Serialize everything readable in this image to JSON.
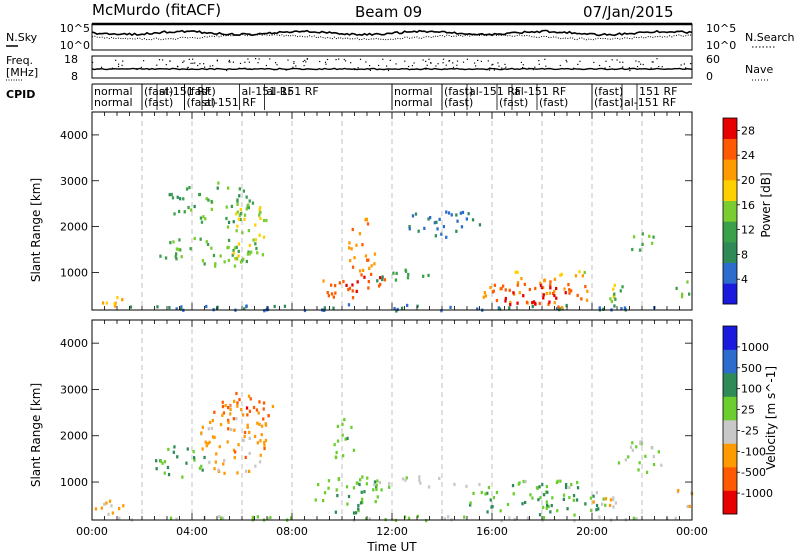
{
  "header": {
    "station": "McMurdo (fitACF)",
    "beam": "Beam 09",
    "date": "07/Jan/2015"
  },
  "side_labels": {
    "nsky": "N.Sky",
    "nsearch": "N.Search",
    "freq_line1": "Freq.",
    "freq_line2": "[MHz]",
    "nave": "Nave",
    "cpid": "CPID"
  },
  "noise_panel": {
    "left_ticks": [
      "10^5",
      "10^0"
    ],
    "right_ticks": [
      "10^5",
      "10^0"
    ]
  },
  "freq_panel": {
    "left_ticks": [
      "18",
      "8"
    ],
    "right_ticks": [
      "60",
      "0"
    ]
  },
  "cpid_labels": [
    {
      "t": 0.0,
      "text": "normal",
      "row": 0
    },
    {
      "t": 0.0,
      "text": "normal",
      "row": 1
    },
    {
      "t": 2.0,
      "text": "(fast)",
      "row": 0
    },
    {
      "t": 2.0,
      "text": "(fast)",
      "row": 1
    },
    {
      "t": 2.6,
      "text": "al-151 RF",
      "row": 0
    },
    {
      "t": 3.7,
      "text": "(fast)",
      "row": 0
    },
    {
      "t": 3.7,
      "text": "(fast)",
      "row": 1
    },
    {
      "t": 4.4,
      "text": "al-151 RF",
      "row": 1
    },
    {
      "t": 5.9,
      "text": "al-151 RF",
      "row": 0
    },
    {
      "t": 6.9,
      "text": "al-151 RF",
      "row": 0
    },
    {
      "t": 12.0,
      "text": "normal",
      "row": 0
    },
    {
      "t": 12.0,
      "text": "normal",
      "row": 1
    },
    {
      "t": 14.0,
      "text": "(fast)",
      "row": 0
    },
    {
      "t": 14.0,
      "text": "(fast)",
      "row": 1
    },
    {
      "t": 15.0,
      "text": "al-151 RF",
      "row": 0
    },
    {
      "t": 16.2,
      "text": "(fast)",
      "row": 1
    },
    {
      "t": 16.8,
      "text": "al-151 RF",
      "row": 0
    },
    {
      "t": 17.8,
      "text": "(fast)",
      "row": 1
    },
    {
      "t": 20.0,
      "text": "(fast)",
      "row": 0
    },
    {
      "t": 20.0,
      "text": "(fast)",
      "row": 1
    },
    {
      "t": 21.2,
      "text": "al-151 RF",
      "row": 1
    },
    {
      "t": 21.8,
      "text": "151 RF",
      "row": 0
    }
  ],
  "chart_data": [
    {
      "type": "heatmap",
      "ylabel": "Slant Range [km]",
      "xlabel": "",
      "x_ticks": [
        "00:00",
        "04:00",
        "08:00",
        "12:00",
        "16:00",
        "20:00",
        "00:00"
      ],
      "y_ticks": [
        "1000",
        "2000",
        "3000",
        "4000"
      ],
      "xlim_hours": [
        0,
        24
      ],
      "ylim_km": [
        180,
        4500
      ],
      "colorbar": {
        "label": "Power [dB]",
        "ticks": [
          "4",
          "8",
          "12",
          "16",
          "20",
          "24",
          "28"
        ],
        "range": [
          0,
          30
        ],
        "colors": [
          "#1a1adf",
          "#2b6ccd",
          "#2e8b57",
          "#3aa04a",
          "#7acd2f",
          "#ffd000",
          "#ff9a00",
          "#ff5a00",
          "#e60000"
        ]
      },
      "blobs": [
        {
          "t": [
            0.0,
            1.2
          ],
          "r": [
            220,
            600
          ],
          "v": 20
        },
        {
          "t": [
            0.0,
            24.0
          ],
          "r": [
            190,
            330
          ],
          "v": 6
        },
        {
          "t": [
            2.5,
            7.0
          ],
          "r": [
            1150,
            1800
          ],
          "v": 13
        },
        {
          "t": [
            3.0,
            6.5
          ],
          "r": [
            2100,
            3000
          ],
          "v": 12
        },
        {
          "t": [
            5.2,
            7.0
          ],
          "r": [
            1300,
            2600
          ],
          "v": 17
        },
        {
          "t": [
            9.0,
            11.8
          ],
          "r": [
            450,
            1100
          ],
          "v": 25
        },
        {
          "t": [
            10.2,
            11.4
          ],
          "r": [
            1000,
            2200
          ],
          "v": 22
        },
        {
          "t": [
            11.0,
            13.5
          ],
          "r": [
            800,
            1150
          ],
          "v": 10
        },
        {
          "t": [
            12.5,
            15.5
          ],
          "r": [
            1800,
            2400
          ],
          "v": 6
        },
        {
          "t": [
            15.5,
            20.0
          ],
          "r": [
            250,
            900
          ],
          "v": 24
        },
        {
          "t": [
            16.2,
            19.0
          ],
          "r": [
            250,
            750
          ],
          "v": 29
        },
        {
          "t": [
            16.0,
            20.5
          ],
          "r": [
            950,
            1100
          ],
          "v": 19
        },
        {
          "t": [
            20.0,
            21.5
          ],
          "r": [
            400,
            800
          ],
          "v": 15
        },
        {
          "t": [
            21.5,
            22.5
          ],
          "r": [
            1400,
            1900
          ],
          "v": 13
        },
        {
          "t": [
            23.3,
            24.0
          ],
          "r": [
            400,
            900
          ],
          "v": 14
        }
      ]
    },
    {
      "type": "heatmap",
      "ylabel": "Slant Range [km]",
      "xlabel": "Time UT",
      "x_ticks": [
        "00:00",
        "04:00",
        "08:00",
        "12:00",
        "16:00",
        "20:00",
        "00:00"
      ],
      "y_ticks": [
        "1000",
        "2000",
        "3000",
        "4000"
      ],
      "xlim_hours": [
        0,
        24
      ],
      "ylim_km": [
        180,
        4500
      ],
      "colorbar": {
        "label": "Velocity [m s^-1]",
        "ticks": [
          "1000",
          "500",
          "100",
          "25",
          "-25",
          "-100",
          "-500",
          "-1000"
        ],
        "range": [
          -1200,
          1200
        ],
        "colors": [
          "#e60000",
          "#ff5a00",
          "#ff9a00",
          "#c8c8c8",
          "#6ccd2f",
          "#2e8b57",
          "#2b6ccd",
          "#1a1adf"
        ]
      },
      "blobs": [
        {
          "t": [
            0.0,
            1.3
          ],
          "r": [
            220,
            650
          ],
          "v": -300
        },
        {
          "t": [
            0.0,
            24.0
          ],
          "r": [
            190,
            300
          ],
          "v": 0
        },
        {
          "t": [
            2.5,
            4.5
          ],
          "r": [
            1100,
            1800
          ],
          "v": 300
        },
        {
          "t": [
            4.3,
            7.0
          ],
          "r": [
            1200,
            2700
          ],
          "v": -400
        },
        {
          "t": [
            5.0,
            7.2
          ],
          "r": [
            2100,
            3000
          ],
          "v": -700
        },
        {
          "t": [
            8.8,
            11.6
          ],
          "r": [
            350,
            1200
          ],
          "v": 250
        },
        {
          "t": [
            9.5,
            10.5
          ],
          "r": [
            1500,
            2400
          ],
          "v": 200
        },
        {
          "t": [
            11.0,
            15.5
          ],
          "r": [
            900,
            1150
          ],
          "v": 0
        },
        {
          "t": [
            15.0,
            20.5
          ],
          "r": [
            250,
            1000
          ],
          "v": 300
        },
        {
          "t": [
            17.0,
            20.0
          ],
          "r": [
            900,
            1150
          ],
          "v": 150
        },
        {
          "t": [
            20.0,
            21.2
          ],
          "r": [
            400,
            900
          ],
          "v": -300
        },
        {
          "t": [
            21.0,
            22.8
          ],
          "r": [
            1200,
            1900
          ],
          "v": 60
        },
        {
          "t": [
            23.2,
            24.0
          ],
          "r": [
            400,
            900
          ],
          "v": -350
        }
      ]
    }
  ]
}
